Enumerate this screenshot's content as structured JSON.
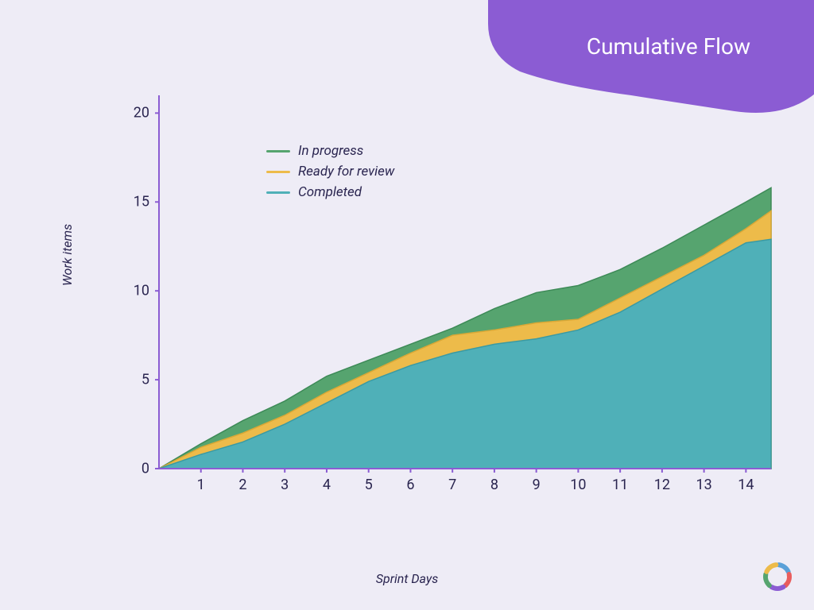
{
  "title": "Cumulative Flow",
  "title_blob_color": "#8b5cd3",
  "title_text_color": "#ffffff",
  "title_fontsize": 28,
  "background_color": "#eeecf6",
  "chart": {
    "type": "area",
    "xlabel": "Sprint Days",
    "ylabel": "Work items",
    "label_fontsize": 16,
    "label_fontstyle": "italic",
    "label_color": "#2a2550",
    "tick_fontsize": 18,
    "tick_color": "#2a2550",
    "axis_color": "#8b5cd3",
    "axis_width": 2,
    "xlim": [
      0,
      14.6
    ],
    "ylim": [
      0,
      21
    ],
    "yticks": [
      0,
      5,
      10,
      15,
      20
    ],
    "xticks": [
      1,
      2,
      3,
      4,
      5,
      6,
      7,
      8,
      9,
      10,
      11,
      12,
      13,
      14
    ],
    "x": [
      0,
      1,
      2,
      3,
      4,
      5,
      6,
      7,
      8,
      9,
      10,
      11,
      12,
      13,
      14,
      14.6
    ],
    "series": [
      {
        "name": "In progress",
        "color": "#56a46f",
        "stroke": "#3d8a57",
        "values": [
          0,
          1.4,
          2.7,
          3.8,
          5.2,
          6.1,
          7.0,
          7.9,
          9.0,
          9.9,
          10.3,
          11.2,
          12.4,
          13.7,
          15.0,
          15.8
        ]
      },
      {
        "name": "Ready for review",
        "color": "#edbb4a",
        "stroke": "#d9a836",
        "values": [
          0,
          1.2,
          2.0,
          3.0,
          4.3,
          5.4,
          6.5,
          7.5,
          7.8,
          8.2,
          8.4,
          9.6,
          10.8,
          12.0,
          13.5,
          14.5
        ]
      },
      {
        "name": "Completed",
        "color": "#4fb0b8",
        "stroke": "#3a9aa3",
        "values": [
          0,
          0.8,
          1.5,
          2.5,
          3.7,
          4.9,
          5.8,
          6.5,
          7.0,
          7.3,
          7.8,
          8.8,
          10.1,
          11.4,
          12.7,
          12.9
        ]
      }
    ]
  },
  "legend": {
    "position": "upper-left-inside",
    "fontstyle": "italic",
    "fontsize": 17,
    "swatch_type": "line",
    "swatch_width": 30,
    "swatch_height": 3,
    "items": [
      {
        "label": "In progress",
        "color": "#56a46f"
      },
      {
        "label": "Ready for review",
        "color": "#edbb4a"
      },
      {
        "label": "Completed",
        "color": "#4fb0b8"
      }
    ]
  },
  "logo": {
    "petal_colors": [
      "#5aa0d8",
      "#e95d5d",
      "#8b5cd3",
      "#56a46f",
      "#edbb4a"
    ],
    "center_color": "#ffffff"
  }
}
